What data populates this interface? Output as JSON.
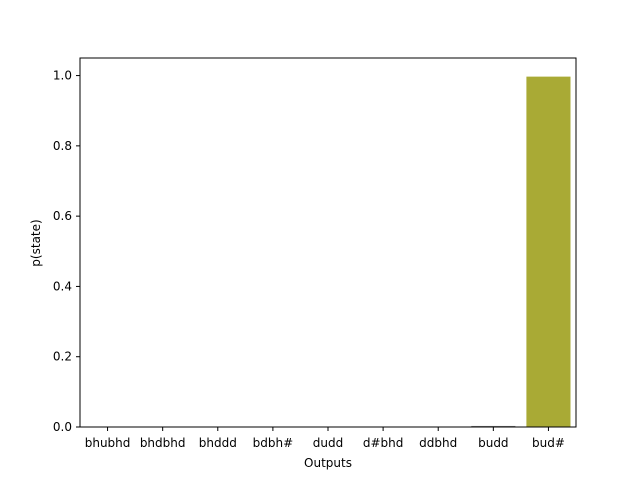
{
  "chart_data": {
    "type": "bar",
    "title": "",
    "xlabel": "Outputs",
    "ylabel": "p(state)",
    "categories": [
      "bhubhd",
      "bhdbhd",
      "bhddd",
      "bdbh#",
      "dudd",
      "d#bhd",
      "ddbhd",
      "budd",
      "bud#"
    ],
    "values": [
      0.0,
      0.0,
      0.0,
      0.0,
      0.0,
      0.0,
      0.0,
      0.003,
      0.997
    ],
    "colors": [
      "#3274a1",
      "#e1812c",
      "#3a923a",
      "#c03d3e",
      "#9372b2",
      "#845b53",
      "#d684bd",
      "#7f7f7f",
      "#a9aa35"
    ],
    "ylim": [
      0,
      1.05
    ],
    "yticks": [
      "0.0",
      "0.2",
      "0.4",
      "0.6",
      "0.8",
      "1.0"
    ],
    "grid": false,
    "legend": "none"
  }
}
